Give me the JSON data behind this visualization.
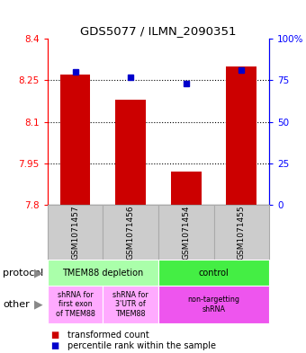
{
  "title": "GDS5077 / ILMN_2090351",
  "samples": [
    "GSM1071457",
    "GSM1071456",
    "GSM1071454",
    "GSM1071455"
  ],
  "transformed_counts": [
    8.27,
    8.18,
    7.92,
    8.3
  ],
  "percentile_ranks": [
    80,
    77,
    73,
    81
  ],
  "ylim": [
    7.8,
    8.4
  ],
  "yticks": [
    7.8,
    7.95,
    8.1,
    8.25,
    8.4
  ],
  "ytick_labels": [
    "7.8",
    "7.95",
    "8.1",
    "8.25",
    "8.4"
  ],
  "right_yticks": [
    0,
    25,
    50,
    75,
    100
  ],
  "right_ytick_labels": [
    "0",
    "25",
    "50",
    "75",
    "100%"
  ],
  "bar_color": "#cc0000",
  "dot_color": "#0000cc",
  "bar_width": 0.55,
  "protocol_row": [
    {
      "label": "TMEM88 depletion",
      "color": "#aaffaa",
      "span": [
        0,
        2
      ]
    },
    {
      "label": "control",
      "color": "#44ee44",
      "span": [
        2,
        4
      ]
    }
  ],
  "other_row": [
    {
      "label": "shRNA for\nfirst exon\nof TMEM88",
      "color": "#ffaaff",
      "span": [
        0,
        1
      ]
    },
    {
      "label": "shRNA for\n3'UTR of\nTMEM88",
      "color": "#ffaaff",
      "span": [
        1,
        2
      ]
    },
    {
      "label": "non-targetting\nshRNA",
      "color": "#ee55ee",
      "span": [
        2,
        4
      ]
    }
  ],
  "legend_red_label": "transformed count",
  "legend_blue_label": "percentile rank within the sample",
  "protocol_label": "protocol",
  "other_label": "other",
  "sample_bg": "#cccccc",
  "sample_border": "#aaaaaa"
}
